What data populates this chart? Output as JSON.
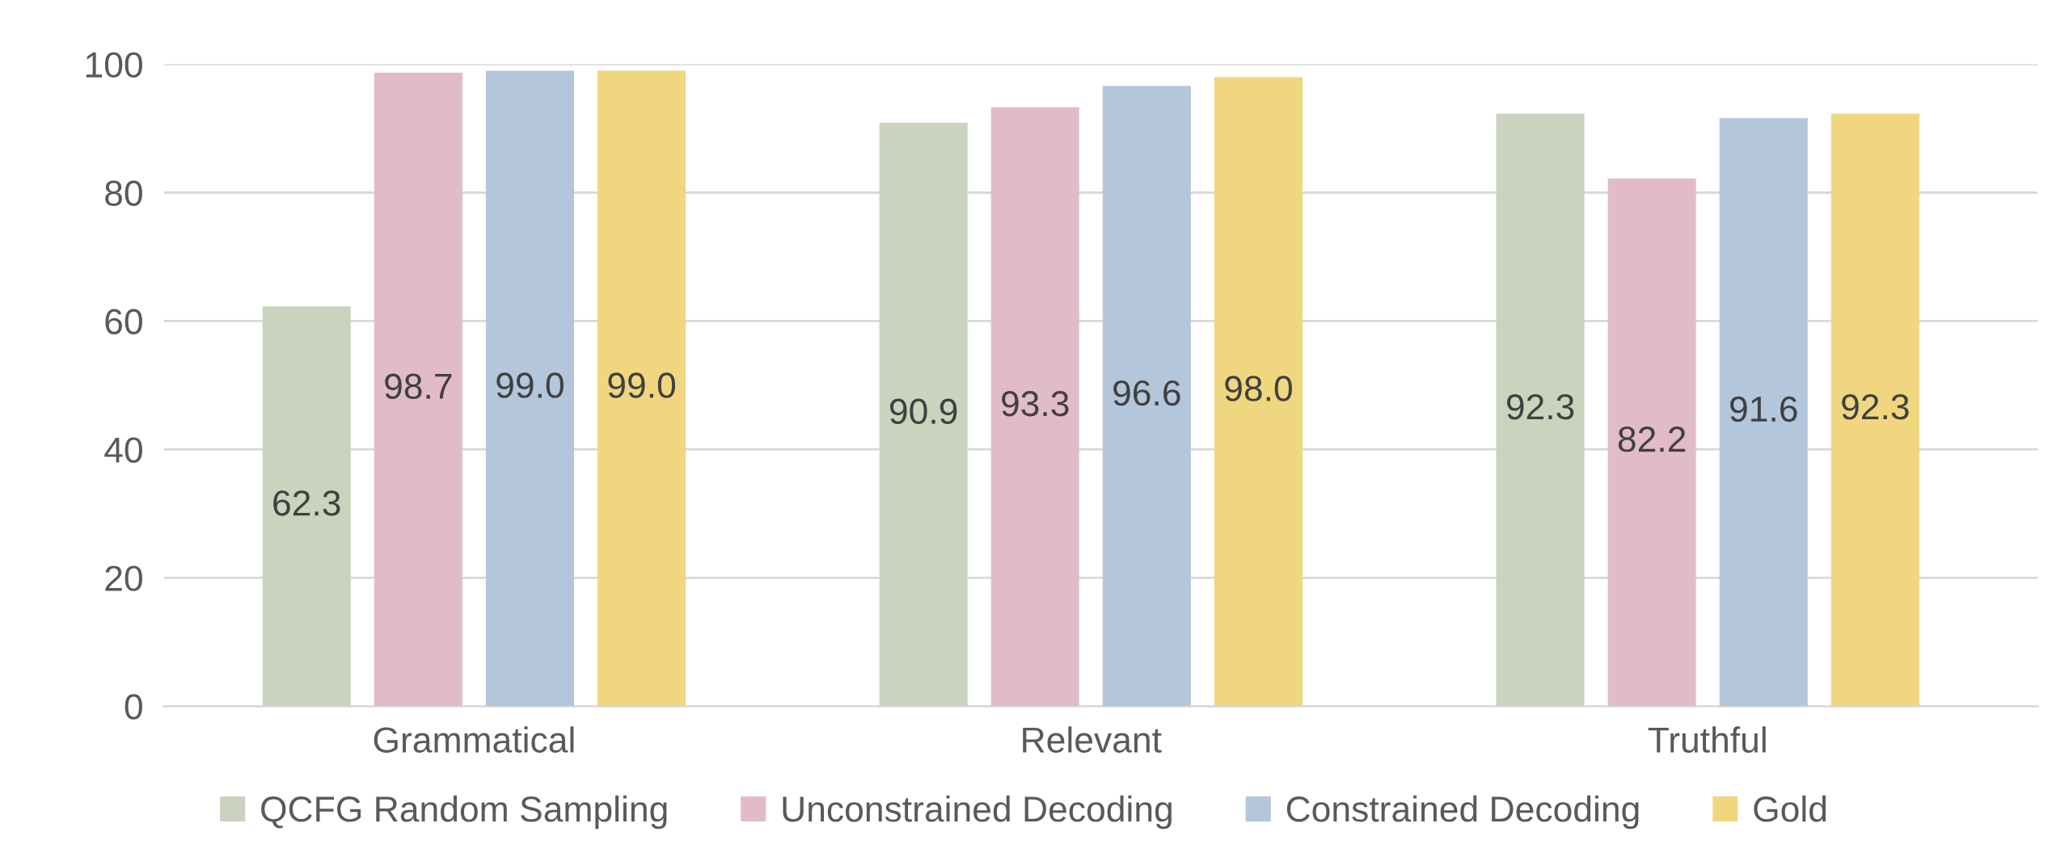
{
  "chart_data": {
    "type": "bar",
    "categories": [
      "Grammatical",
      "Relevant",
      "Truthful"
    ],
    "series": [
      {
        "name": "QCFG Random Sampling",
        "color": "#cad3be",
        "values": [
          62.3,
          90.9,
          92.3
        ],
        "value_labels": [
          "62.3",
          "90.9",
          "92.3"
        ]
      },
      {
        "name": "Unconstrained Decoding",
        "color": "#e2bbc9",
        "values": [
          98.7,
          93.3,
          82.2
        ],
        "value_labels": [
          "98.7",
          "93.3",
          "82.2"
        ]
      },
      {
        "name": "Constrained Decoding",
        "color": "#b4c6dc",
        "values": [
          99.0,
          96.6,
          91.6
        ],
        "value_labels": [
          "99.0",
          "96.6",
          "91.6"
        ]
      },
      {
        "name": "Gold",
        "color": "#f0d77f",
        "values": [
          99.0,
          98.0,
          92.3
        ],
        "value_labels": [
          "99.0",
          "98.0",
          "92.3"
        ]
      }
    ],
    "ylim": [
      0,
      100
    ],
    "yticks": [
      0,
      20,
      40,
      60,
      80,
      100
    ],
    "grid": "y",
    "legend": "bottom"
  }
}
